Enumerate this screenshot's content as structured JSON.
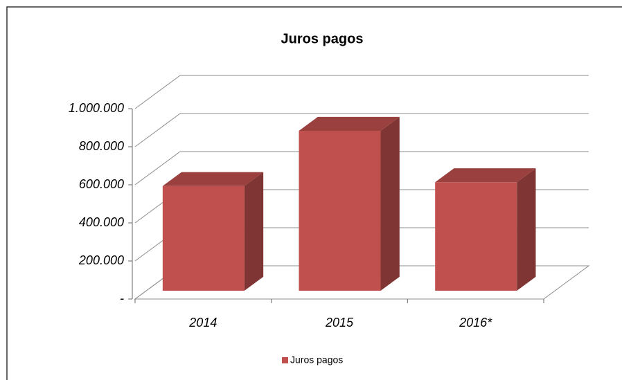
{
  "chart_data": {
    "type": "bar3d",
    "title": "Juros pagos",
    "categories": [
      "2014",
      "2015",
      "2016*"
    ],
    "series": [
      {
        "name": "Juros pagos",
        "color": "#c0504d",
        "values": [
          550000,
          840000,
          570000
        ]
      }
    ],
    "ylim": [
      0,
      1000000
    ],
    "yticks": [
      {
        "value": 0,
        "label": "-"
      },
      {
        "value": 200000,
        "label": "200.000"
      },
      {
        "value": 400000,
        "label": "400.000"
      },
      {
        "value": 600000,
        "label": "600.000"
      },
      {
        "value": 800000,
        "label": "800.000"
      },
      {
        "value": 1000000,
        "label": "1.000.000"
      }
    ],
    "grid": true,
    "legend": "bottom"
  }
}
